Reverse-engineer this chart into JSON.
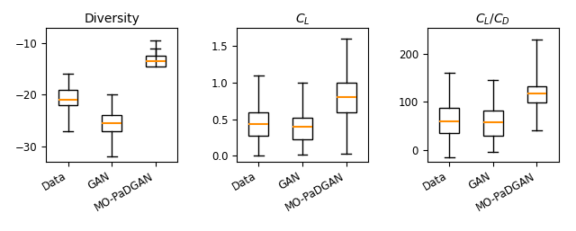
{
  "subplots": [
    {
      "title": "Diversity",
      "categories": [
        "Data",
        "GAN",
        "MO-PaDGAN"
      ],
      "box_data": [
        {
          "whislo": -27,
          "q1": -22,
          "med": -21,
          "q3": -19,
          "whishi": -16
        },
        {
          "whislo": -32,
          "q1": -27,
          "med": -25.5,
          "q3": -24,
          "whishi": -20
        },
        {
          "whislo": -11,
          "q1": -14.5,
          "med": -13.5,
          "q3": -12.5,
          "whishi": -9.5
        }
      ],
      "ylim": [
        -33,
        -7
      ],
      "yticks": [
        -30,
        -20,
        -10
      ]
    },
    {
      "title": "$C_L$",
      "categories": [
        "Data",
        "GAN",
        "MO-PaDGAN"
      ],
      "box_data": [
        {
          "whislo": 0.0,
          "q1": 0.28,
          "med": 0.44,
          "q3": 0.6,
          "whishi": 1.1
        },
        {
          "whislo": 0.02,
          "q1": 0.22,
          "med": 0.4,
          "q3": 0.52,
          "whishi": 1.0
        },
        {
          "whislo": 0.03,
          "q1": 0.6,
          "med": 0.8,
          "q3": 1.0,
          "whishi": 1.6
        }
      ],
      "ylim": [
        -0.08,
        1.75
      ],
      "yticks": [
        0.0,
        0.5,
        1.0,
        1.5
      ]
    },
    {
      "title": "$C_L/C_D$",
      "categories": [
        "Data",
        "GAN",
        "MO-PaDGAN"
      ],
      "box_data": [
        {
          "whislo": -15,
          "q1": 35,
          "med": 60,
          "q3": 88,
          "whishi": 160
        },
        {
          "whislo": -5,
          "q1": 30,
          "med": 58,
          "q3": 82,
          "whishi": 145
        },
        {
          "whislo": 40,
          "q1": 98,
          "med": 118,
          "q3": 132,
          "whishi": 230
        }
      ],
      "ylim": [
        -25,
        255
      ],
      "yticks": [
        0,
        100,
        200
      ]
    }
  ],
  "median_color": "#ff8c00",
  "box_facecolor": "white",
  "box_edgecolor": "black",
  "whisker_color": "black",
  "cap_color": "black",
  "figure_width": 6.4,
  "figure_height": 2.57,
  "dpi": 100,
  "box_width": 0.45,
  "tick_fontsize": 8.5,
  "title_fontsize": 10
}
